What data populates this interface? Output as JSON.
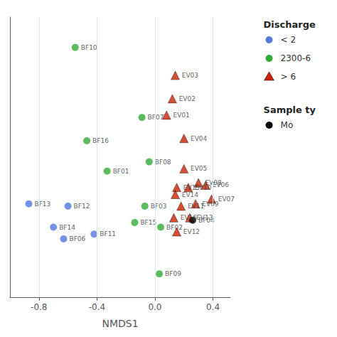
{
  "chart_data": {
    "type": "scatter",
    "xlabel": "NMDS1",
    "xlim": [
      -1.0,
      0.52
    ],
    "ylim": [
      -0.45,
      0.75
    ],
    "xticks": [
      -0.8,
      -0.4,
      {
        "value": 0.0,
        "label": "0.0"
      },
      0.4
    ],
    "yticks": [],
    "tick_labels": "x",
    "grid": true,
    "series": [
      {
        "color": "#33aa33",
        "marker": "circle",
        "labels": [
          "BF10",
          "BF16",
          "BF07",
          "BF08",
          "BF01",
          "BF03",
          "BF15",
          "BF02",
          "BF09"
        ],
        "x": [
          -0.55,
          -0.47,
          -0.09,
          -0.04,
          -0.33,
          -0.07,
          -0.14,
          0.04,
          0.03
        ],
        "y": [
          0.62,
          0.22,
          0.32,
          0.13,
          0.09,
          -0.06,
          -0.13,
          -0.15,
          -0.35
        ]
      },
      {
        "color": "#5577dd",
        "marker": "circle",
        "labels": [
          "BF13",
          "BF12",
          "BF14",
          "BF06",
          "BF11"
        ],
        "x": [
          -0.87,
          -0.6,
          -0.7,
          -0.63,
          -0.42
        ],
        "y": [
          -0.05,
          -0.06,
          -0.15,
          -0.2,
          -0.18
        ]
      },
      {
        "color": "#cc2200",
        "marker": "triangle",
        "labels": [
          "EV03",
          "EV02",
          "EV01",
          "EV04",
          "EV05",
          "EV08",
          "EV06",
          "EV10",
          "EV15",
          "EV14",
          "EV07",
          "EV09",
          "EV11",
          "EV13",
          "EV16",
          "EV12"
        ],
        "x": [
          0.14,
          0.12,
          0.08,
          0.2,
          0.2,
          0.3,
          0.35,
          0.23,
          0.15,
          0.14,
          0.39,
          0.28,
          0.18,
          0.24,
          0.13,
          0.15
        ],
        "y": [
          0.5,
          0.4,
          0.33,
          0.23,
          0.1,
          0.04,
          0.03,
          0.02,
          0.02,
          -0.01,
          -0.03,
          -0.05,
          -0.06,
          -0.11,
          -0.11,
          -0.17
        ]
      },
      {
        "color": "#000000",
        "marker": "circle",
        "labels": [
          "BF04"
        ],
        "x": [
          0.26
        ],
        "y": [
          -0.12
        ]
      }
    ],
    "legends": [
      {
        "title": "Discharge",
        "entries": [
          {
            "label": "< 2",
            "color": "#5577dd",
            "marker": "circle"
          },
          {
            "label": "2300-6",
            "color": "#33aa33",
            "marker": "circle"
          },
          {
            "label": "> 6",
            "color": "#cc2200",
            "marker": "triangle"
          }
        ]
      },
      {
        "title": "Sample ty",
        "entries": [
          {
            "label": "Mo",
            "color": "#000000",
            "marker": "circle"
          }
        ]
      }
    ]
  }
}
